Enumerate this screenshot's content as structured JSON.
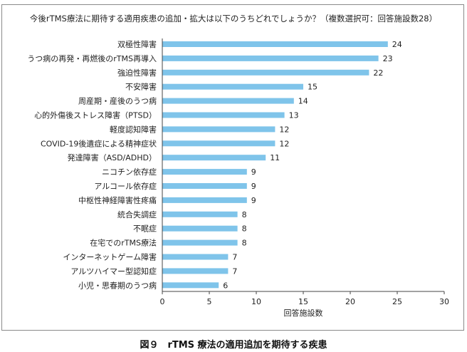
{
  "figure_caption": "図９　rTMS 療法の適用追加を期待する疾患",
  "chart_data": {
    "type": "bar",
    "orientation": "horizontal",
    "title": "今後rTMS療法に期待する適用疾患の追加・拡大は以下のうちどれでしょうか？（複数選択可：回答施設数28）",
    "xlabel": "回答施設数",
    "ylabel": "",
    "xlim": [
      0,
      30
    ],
    "xticks": [
      0,
      5,
      10,
      15,
      20,
      25,
      30
    ],
    "grid": false,
    "bar_color": "#7fc4ea",
    "categories": [
      "双極性障害",
      "うつ病の再発・再燃後のrTMS再導入",
      "強迫性障害",
      "不安障害",
      "周産期・産後のうつ病",
      "心的外傷後ストレス障害（PTSD）",
      "軽度認知障害",
      "COVID-19後遺症による精神症状",
      "発達障害（ASD/ADHD）",
      "ニコチン依存症",
      "アルコール依存症",
      "中枢性神経障害性疼痛",
      "統合失調症",
      "不眠症",
      "在宅でのrTMS療法",
      "インターネットゲーム障害",
      "アルツハイマー型認知症",
      "小児・思春期のうつ病"
    ],
    "values": [
      24,
      23,
      22,
      15,
      14,
      13,
      12,
      12,
      11,
      9,
      9,
      9,
      8,
      8,
      8,
      7,
      7,
      6
    ]
  }
}
